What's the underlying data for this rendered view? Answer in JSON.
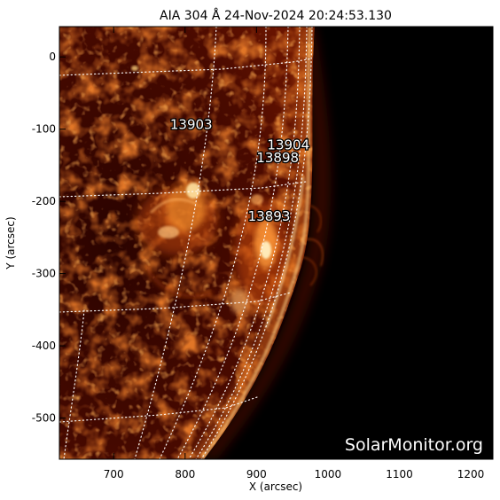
{
  "title": "AIA 304 Å 24-Nov-2024  20:24:53.130",
  "xlabel": "X (arcsec)",
  "ylabel": "Y (arcsec)",
  "x_ticks": [
    700,
    800,
    900,
    1000,
    1100,
    1200
  ],
  "y_ticks": [
    0,
    -100,
    -200,
    -300,
    -400,
    -500
  ],
  "xlim": [
    624,
    1231
  ],
  "ylim": [
    -557,
    42
  ],
  "regions": [
    {
      "label": "13903",
      "x": 779,
      "y": -100
    },
    {
      "label": "13904",
      "x": 915,
      "y": -128
    },
    {
      "label": "13898",
      "x": 900,
      "y": -146
    },
    {
      "label": "13893",
      "x": 888,
      "y": -227
    }
  ],
  "watermark": "SolarMonitor.org",
  "colors": {
    "plasma_dark": "#3a0500",
    "plasma_mid": "#b33a05",
    "plasma_bright": "#ffd27a",
    "background": "#000000",
    "grid": "#ffffff"
  }
}
